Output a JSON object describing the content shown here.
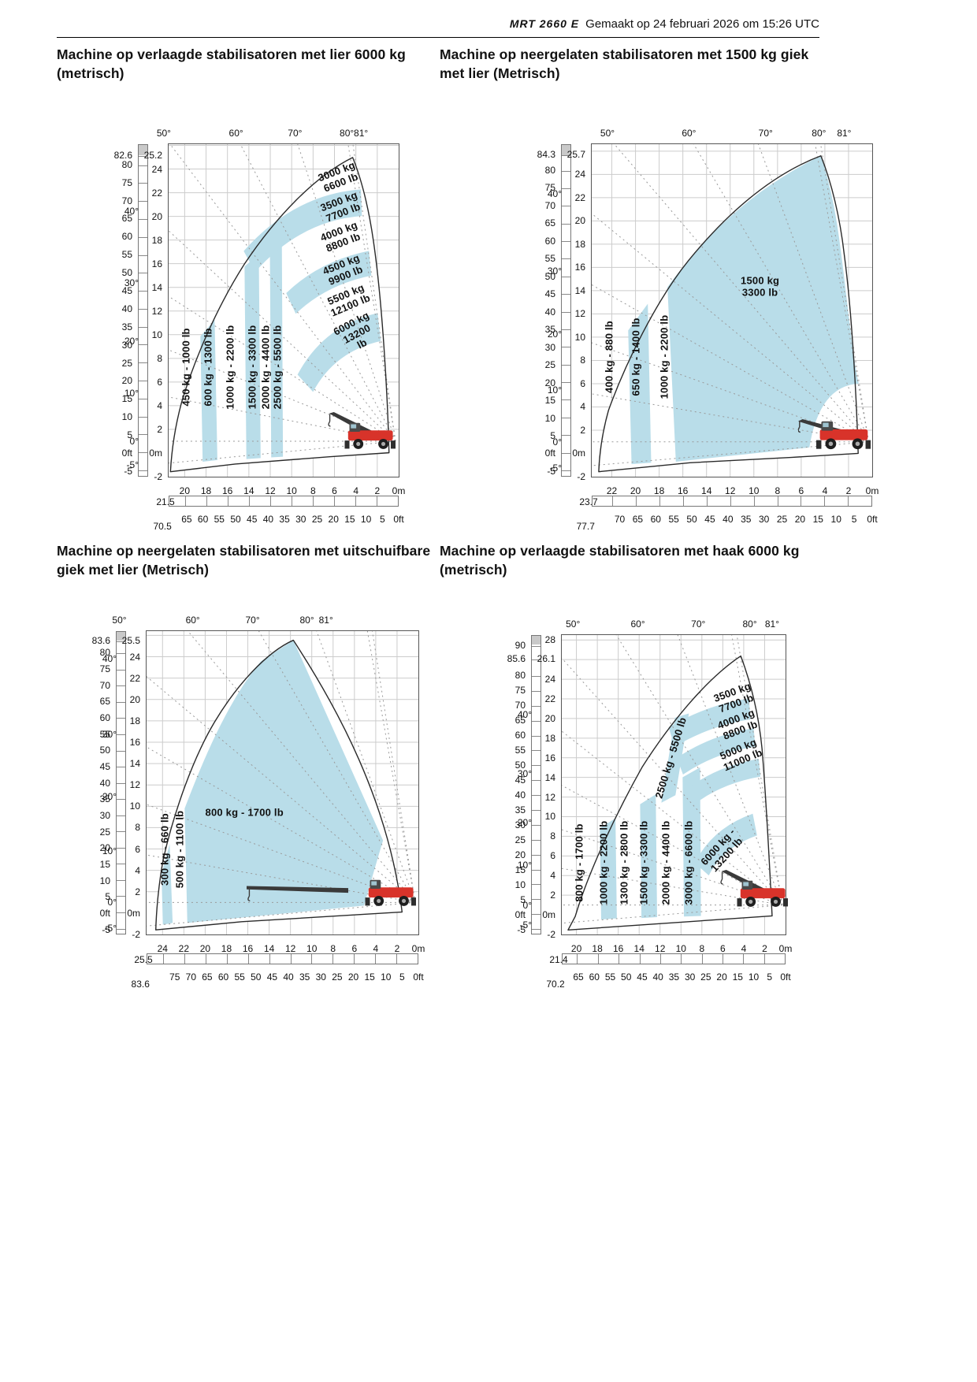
{
  "header": {
    "model": "MRT 2660 E",
    "generated": "Gemaakt op 24 februari 2026 om 15:26 UTC"
  },
  "colors": {
    "zone_fill": "#b9dde9",
    "outline": "#2a2a2a",
    "machine_red": "#d8332a"
  },
  "chart_data": [
    {
      "type": "load-chart",
      "title": "Machine op verlaagde stabilisatoren met lier 6000 kg (metrisch)",
      "scale": {
        "maxM": 21.5,
        "topM": 26.1,
        "botM": -2,
        "maxFt": 70.5
      },
      "anglesTop": [
        50,
        60,
        70,
        80,
        81
      ],
      "anglesSide": [
        40,
        30,
        20,
        10,
        0,
        -5
      ],
      "topAngleX": {},
      "axes": {
        "ft": [
          82.6,
          80,
          75,
          70,
          65,
          60,
          55,
          50,
          45,
          40,
          35,
          30,
          25,
          20,
          15,
          10,
          5,
          {
            "v": 0,
            "l": "0ft"
          },
          -5
        ],
        "m": [
          25.2,
          24,
          22,
          20,
          18,
          16,
          14,
          12,
          10,
          8,
          6,
          4,
          2,
          {
            "v": 0,
            "l": "0m"
          },
          -2
        ],
        "xm": [
          {
            "v": 21.5,
            "l": "21.5"
          },
          20,
          18,
          16,
          14,
          12,
          10,
          8,
          6,
          4,
          2,
          {
            "v": 0,
            "l": "0m"
          }
        ],
        "xft": [
          {
            "v": 70.5,
            "l": "70.5"
          },
          65,
          60,
          55,
          50,
          45,
          40,
          35,
          30,
          25,
          20,
          15,
          10,
          5,
          {
            "v": 0,
            "l": "0ft"
          }
        ]
      },
      "bands": [
        {
          "t": "3000 kg\n6600 lb",
          "x": 74,
          "y": 10,
          "r": -21
        },
        {
          "t": "3500 kg\n7700 lb",
          "x": 75,
          "y": 19,
          "r": -21
        },
        {
          "t": "4000 kg\n8800 lb",
          "x": 75,
          "y": 28,
          "r": -21
        },
        {
          "t": "4500 kg\n9900 lb",
          "x": 76,
          "y": 38,
          "r": -22
        },
        {
          "t": "5500 kg\n12100 lb",
          "x": 78,
          "y": 47,
          "r": -23
        },
        {
          "t": "6000 kg\n13200 lb",
          "x": 82,
          "y": 57,
          "r": -28
        },
        {
          "t": "450 kg - 1000 lb",
          "x": 8,
          "y": 67,
          "r": -90
        },
        {
          "t": "600 kg - 1300 lb",
          "x": 17.5,
          "y": 67,
          "r": -90
        },
        {
          "t": "1000 kg - 2200 lb",
          "x": 27,
          "y": 67,
          "r": -90
        },
        {
          "t": "1500 kg - 3300 lb",
          "x": 36.5,
          "y": 67,
          "r": -90
        },
        {
          "t": "2000 kg - 4400 lb",
          "x": 42.5,
          "y": 67,
          "r": -90
        },
        {
          "t": "2500 kg - 5500 lb",
          "x": 47.5,
          "y": 67,
          "r": -90
        }
      ]
    },
    {
      "type": "load-chart",
      "title": "Machine op neergelaten stabilisatoren met 1500 kg giek met lier (Metrisch)",
      "scale": {
        "maxM": 23.7,
        "topM": 26.6,
        "botM": -2,
        "maxFt": 77.7
      },
      "anglesTop": [
        50,
        60,
        70,
        80,
        81
      ],
      "anglesSide": [
        40,
        30,
        20,
        10,
        0,
        -5
      ],
      "topAngleX": {
        "70": 62,
        "80": 81,
        "81": 90
      },
      "axes": {
        "ft": [
          84.3,
          80,
          75,
          70,
          65,
          60,
          55,
          50,
          45,
          40,
          35,
          30,
          25,
          20,
          15,
          10,
          5,
          {
            "v": 0,
            "l": "0ft"
          },
          -5
        ],
        "m": [
          25.7,
          24,
          22,
          20,
          18,
          16,
          14,
          12,
          10,
          8,
          6,
          4,
          2,
          {
            "v": 0,
            "l": "0m"
          },
          -2
        ],
        "xm": [
          {
            "v": 23.7,
            "l": "23.7"
          },
          22,
          20,
          18,
          16,
          14,
          12,
          10,
          8,
          6,
          4,
          2,
          {
            "v": 0,
            "l": "0m"
          }
        ],
        "xft": [
          {
            "v": 77.7,
            "l": "77.7"
          },
          70,
          65,
          60,
          55,
          50,
          45,
          40,
          35,
          30,
          25,
          20,
          15,
          10,
          5,
          {
            "v": 0,
            "l": "0ft"
          }
        ]
      },
      "bands": [
        {
          "t": "1500 kg\n3300 lb",
          "x": 60,
          "y": 43,
          "r": 0
        },
        {
          "t": "400 kg - 880 lb",
          "x": 6.5,
          "y": 64,
          "r": -90
        },
        {
          "t": "650 kg - 1400 lb",
          "x": 16,
          "y": 64,
          "r": -90
        },
        {
          "t": "1000 kg - 2200 lb",
          "x": 26,
          "y": 64,
          "r": -90
        }
      ]
    },
    {
      "type": "load-chart",
      "title": "Machine op neergelaten stabilisatoren met uitschuifbare giek met lier (Metrisch)",
      "scale": {
        "maxM": 25.5,
        "topM": 26.4,
        "botM": -2,
        "maxFt": 83.6
      },
      "anglesTop": [
        50,
        60,
        70,
        80,
        81
      ],
      "anglesSide": [
        40,
        30,
        20,
        10,
        0,
        -5
      ],
      "topAngleX": {
        "50": -10,
        "60": 17,
        "70": 39,
        "80": 59,
        "81": 66
      },
      "axes": {
        "ft": [
          83.6,
          80,
          75,
          70,
          65,
          60,
          55,
          50,
          45,
          40,
          35,
          30,
          25,
          20,
          15,
          10,
          5,
          {
            "v": 0,
            "l": "0ft"
          },
          -5
        ],
        "m": [
          25.5,
          24,
          22,
          20,
          18,
          16,
          14,
          12,
          10,
          8,
          6,
          4,
          2,
          {
            "v": 0,
            "l": "0m"
          },
          -2
        ],
        "xm": [
          {
            "v": 25.5,
            "l": "25.5"
          },
          24,
          22,
          20,
          18,
          16,
          14,
          12,
          10,
          8,
          6,
          4,
          2,
          {
            "v": 0,
            "l": "0m"
          }
        ],
        "xft": [
          {
            "v": 83.6,
            "l": "83.6"
          },
          75,
          70,
          65,
          60,
          55,
          50,
          45,
          40,
          35,
          30,
          25,
          20,
          15,
          10,
          5,
          {
            "v": 0,
            "l": "0ft"
          }
        ]
      },
      "bands": [
        {
          "t": "800 kg - 1700 lb",
          "x": 36,
          "y": 60,
          "r": 0
        },
        {
          "t": "300 kg - 660 lb",
          "x": 7,
          "y": 72,
          "r": -90
        },
        {
          "t": "500 kg - 1100 lb",
          "x": 12.5,
          "y": 72,
          "r": -90
        }
      ]
    },
    {
      "type": "load-chart",
      "title": "Machine op verlaagde stabilisatoren met haak 6000 kg (metrisch)",
      "scale": {
        "maxM": 21.4,
        "topM": 28.5,
        "botM": -2,
        "maxFt": 70.2
      },
      "anglesTop": [
        50,
        60,
        70,
        80,
        81
      ],
      "anglesSide": [
        40,
        30,
        20,
        10,
        0,
        -5
      ],
      "topAngleX": {
        "50": 5,
        "60": 34,
        "70": 61,
        "80": 84,
        "81": 94
      },
      "axes": {
        "ft": [
          90,
          85.6,
          80,
          75,
          70,
          65,
          60,
          55,
          50,
          45,
          40,
          35,
          30,
          25,
          20,
          15,
          10,
          5,
          {
            "v": 0,
            "l": "0ft"
          },
          -5
        ],
        "m": [
          28,
          26.1,
          24,
          22,
          20,
          18,
          16,
          14,
          12,
          10,
          8,
          6,
          4,
          2,
          {
            "v": 0,
            "l": "0m"
          },
          -2
        ],
        "xm": [
          {
            "v": 21.4,
            "l": "21.4"
          },
          20,
          18,
          16,
          14,
          12,
          10,
          8,
          6,
          4,
          2,
          {
            "v": 0,
            "l": "0m"
          }
        ],
        "xft": [
          {
            "v": 70.2,
            "l": "70.2"
          },
          65,
          60,
          55,
          50,
          45,
          40,
          35,
          30,
          25,
          20,
          15,
          10,
          5,
          {
            "v": 0,
            "l": "0ft"
          }
        ]
      },
      "bands": [
        {
          "t": "3500 kg\n7700 lb",
          "x": 77,
          "y": 21,
          "r": -20
        },
        {
          "t": "4000 kg\n8800 lb",
          "x": 79,
          "y": 30,
          "r": -21
        },
        {
          "t": "5000 kg\n11000 lb",
          "x": 80,
          "y": 40,
          "r": -23
        },
        {
          "t": "2500 kg - 5500 lb",
          "x": 49,
          "y": 41,
          "r": -73
        },
        {
          "t": "6000 kg - 13200 lb",
          "x": 72,
          "y": 72,
          "r": -48
        },
        {
          "t": "800 kg - 1700 lb",
          "x": 8,
          "y": 76,
          "r": -90
        },
        {
          "t": "1000 kg - 2200 lb",
          "x": 19,
          "y": 76,
          "r": -90
        },
        {
          "t": "1300 kg - 2800 lb",
          "x": 28,
          "y": 76,
          "r": -90
        },
        {
          "t": "1500 kg - 3300 lb",
          "x": 37,
          "y": 76,
          "r": -90
        },
        {
          "t": "2000 kg - 4400 lb",
          "x": 47,
          "y": 76,
          "r": -90
        },
        {
          "t": "3000 kg - 6600 lb",
          "x": 57,
          "y": 76,
          "r": -90
        }
      ]
    }
  ]
}
